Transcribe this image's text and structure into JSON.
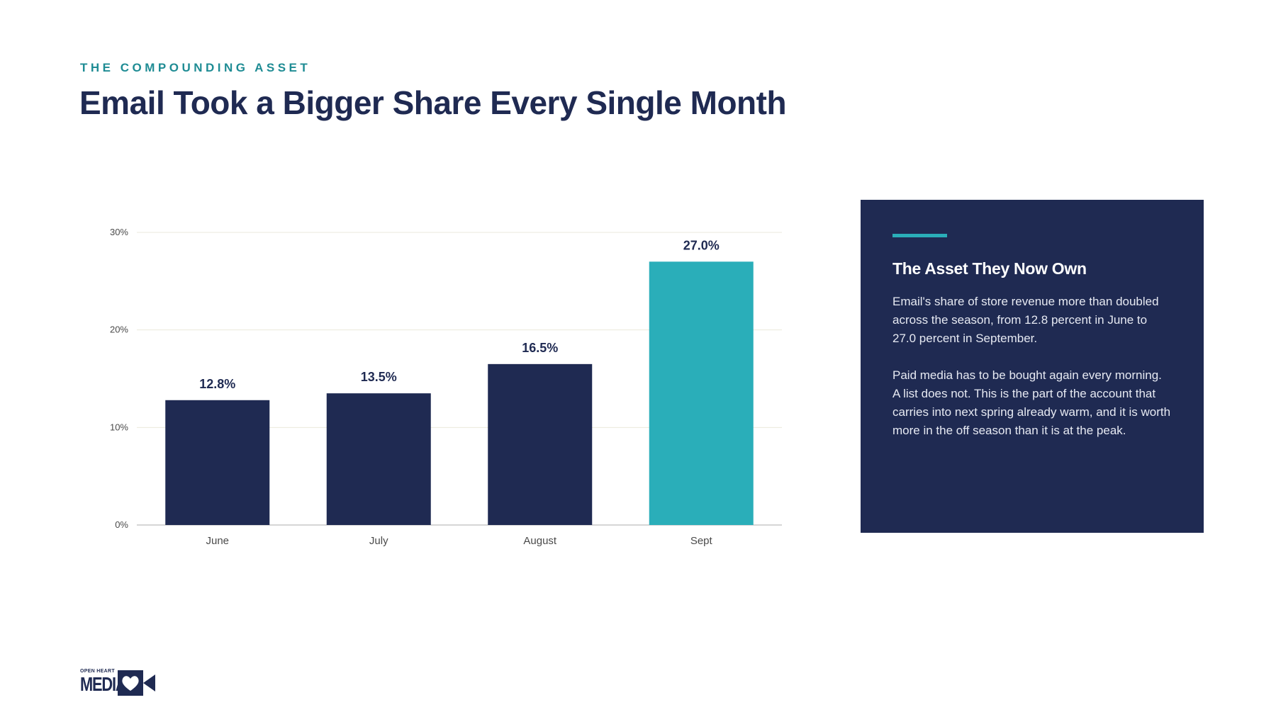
{
  "slide": {
    "eyebrow": "THE COMPOUNDING ASSET",
    "title": "Email Took a Bigger Share Every Single Month"
  },
  "chart_data": {
    "type": "bar",
    "categories": [
      "June",
      "July",
      "August",
      "Sept"
    ],
    "values": [
      12.8,
      13.5,
      16.5,
      27.0
    ],
    "data_labels": [
      "12.8%",
      "13.5%",
      "16.5%",
      "27.0%"
    ],
    "y_ticks": [
      0,
      10,
      20,
      30
    ],
    "y_tick_labels": [
      "0%",
      "10%",
      "20%",
      "30%"
    ],
    "ylim": [
      0,
      30
    ],
    "grid": true,
    "colors": {
      "default": "#1f2a52",
      "highlight": "#2aaeb9",
      "highlight_index": 3,
      "gridline": "#ebe9dc",
      "axis": "#c9c9c9"
    }
  },
  "panel": {
    "title": "The Asset They Now Own",
    "paragraph_1": "Email's share of store revenue more than doubled across the season, from 12.8 percent in June to 27.0 percent in September.",
    "paragraph_2": "Paid media has to be bought again every morning. A list does not. This is the part of the account that carries into next spring already warm, and it is worth more in the off season than it is at the peak."
  },
  "logo": {
    "line_1": "OPEN HEART",
    "line_2": "MEDIA",
    "icon": "camera-heart-icon"
  }
}
